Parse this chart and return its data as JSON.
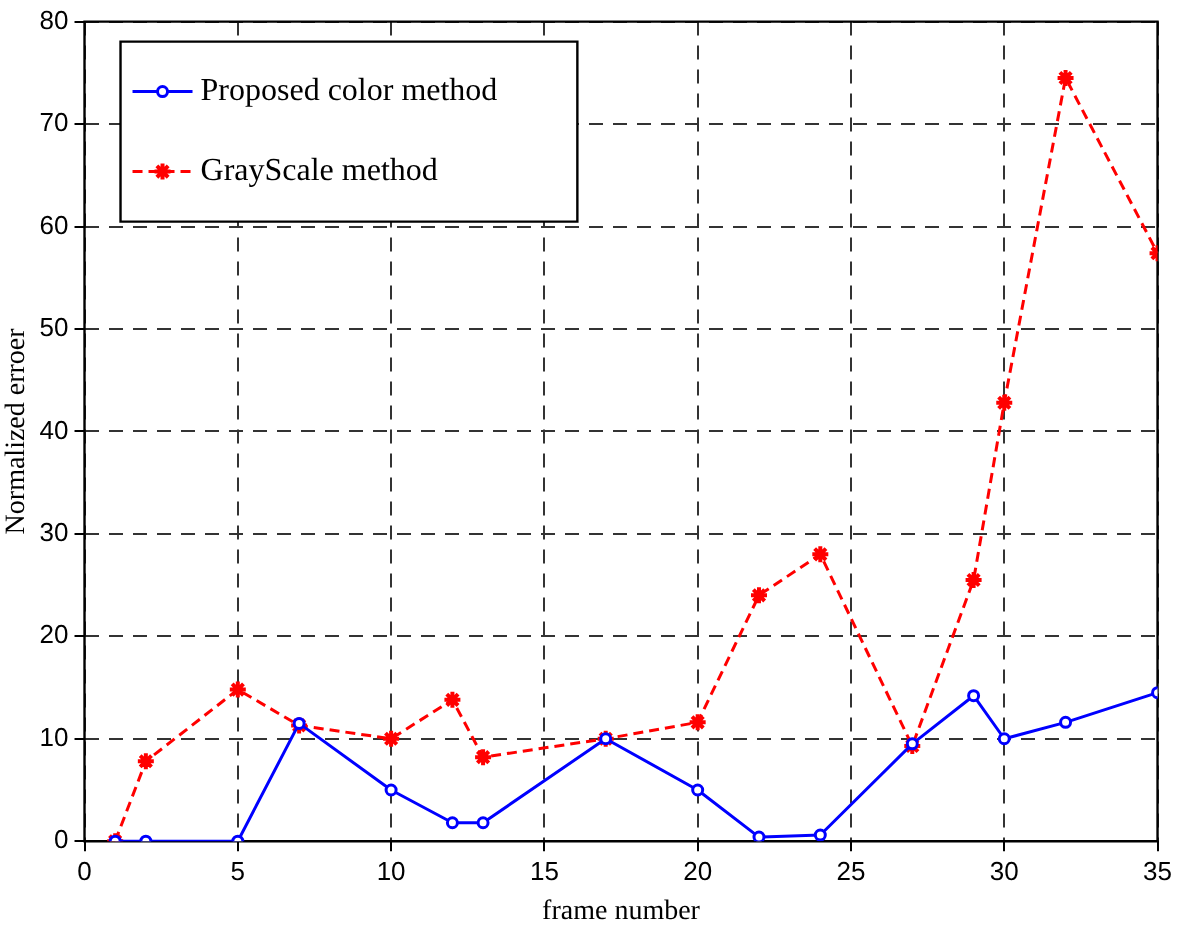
{
  "chart_data": {
    "type": "line",
    "xlabel": "frame number",
    "ylabel": "Normalized erroer",
    "xlim": [
      0,
      35
    ],
    "xticks": [
      0,
      5,
      10,
      15,
      20,
      25,
      30,
      35
    ],
    "ylim": [
      0,
      80
    ],
    "yticks": [
      0,
      10,
      20,
      30,
      40,
      50,
      60,
      70,
      80
    ],
    "grid": true,
    "legend": "top left",
    "x": [
      1,
      2,
      5,
      7,
      10,
      12,
      13,
      17,
      20,
      22,
      24,
      27,
      29,
      30,
      32,
      35
    ],
    "series": [
      {
        "name": "Proposed color method",
        "color": "#0000ff",
        "marker": "circle",
        "line_style": "solid",
        "values": [
          0,
          0,
          0,
          11.5,
          5,
          1.8,
          1.8,
          10,
          5,
          0.4,
          0.6,
          9.5,
          14.2,
          10,
          11.6,
          14.5
        ]
      },
      {
        "name": "GrayScale method",
        "color": "#ff0000",
        "marker": "cross",
        "line_style": "dashed",
        "values": [
          0,
          7.8,
          14.8,
          11.3,
          10,
          13.8,
          8.2,
          10,
          11.6,
          24,
          28,
          9.3,
          25.5,
          42.8,
          74.5,
          57.4
        ]
      }
    ]
  }
}
